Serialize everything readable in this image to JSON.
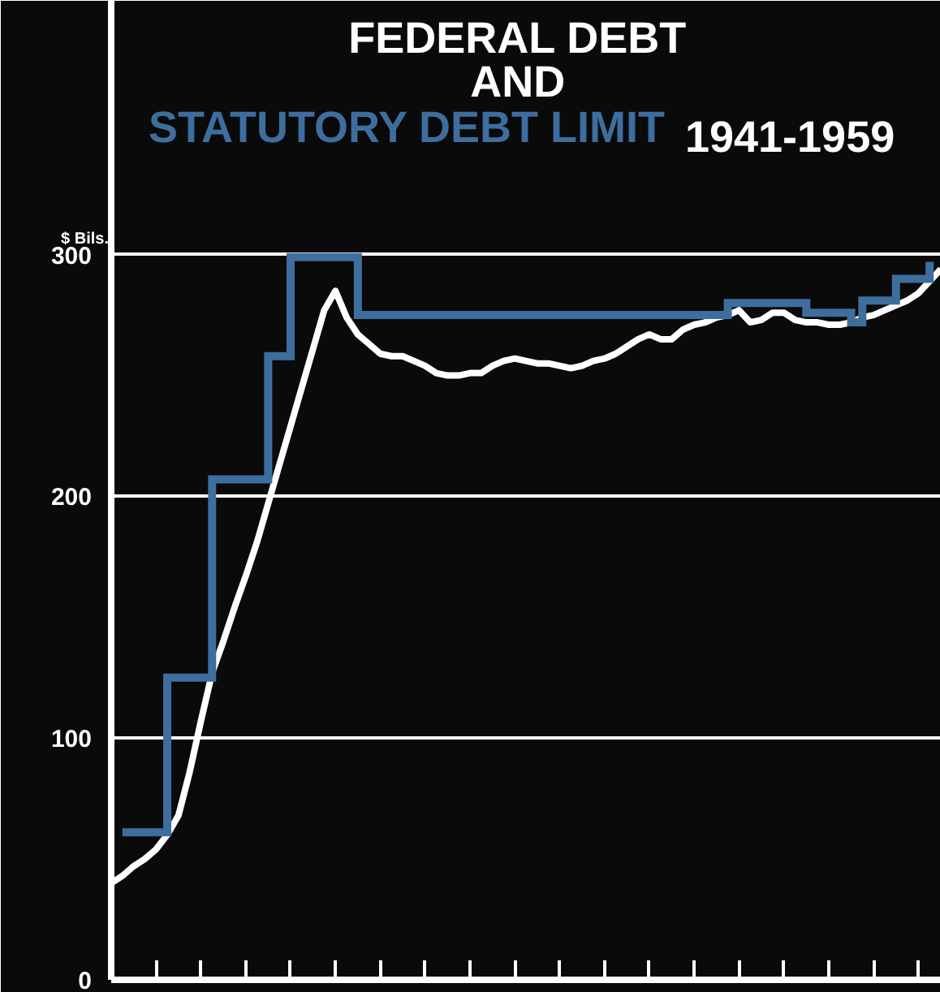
{
  "chart_data": {
    "type": "line",
    "title": "FEDERAL DEBT\nAND",
    "subtitle": "1941-1959",
    "ylabel": "$ Bils.",
    "categories": [
      null,
      null,
      null,
      null,
      null,
      null,
      null,
      null,
      null,
      null,
      null,
      null,
      null,
      null,
      null,
      null,
      null,
      null,
      null,
      null,
      null,
      null,
      null,
      null,
      null,
      null,
      null,
      null,
      null,
      null,
      null,
      null,
      null,
      null,
      null,
      null,
      null,
      null,
      null,
      null,
      null,
      null,
      null,
      null,
      null,
      null,
      null,
      null,
      null,
      null,
      null,
      null,
      null,
      null,
      null,
      null,
      null,
      null,
      null,
      null,
      null,
      null,
      null,
      null,
      null,
      null,
      null,
      null,
      null,
      null,
      null,
      null,
      null,
      null,
      null
    ],
    "ylim": [
      0,
      405
    ],
    "yticks": [
      0,
      100,
      200,
      300
    ],
    "grid": "y",
    "tick_labels": "y",
    "series": [
      {
        "color": "#ffffff",
        "values": [
          40,
          43,
          47,
          50,
          54,
          60,
          68,
          86,
          107,
          127,
          140,
          154,
          167,
          181,
          197,
          213,
          229,
          245,
          261,
          277,
          285,
          274,
          267,
          263,
          259,
          258,
          258,
          256,
          254,
          251,
          250,
          250,
          251,
          251,
          254,
          256,
          257,
          256,
          255,
          255,
          254,
          253,
          254,
          256,
          257,
          259,
          262,
          265,
          267,
          265,
          265,
          269,
          271,
          272,
          274,
          275,
          277,
          272,
          273,
          276,
          276,
          273,
          272,
          272,
          271,
          271,
          272,
          274,
          275,
          277,
          279,
          281,
          284,
          289,
          294
        ]
      },
      {
        "type": "step",
        "name": "STATUTORY DEBT LIMIT",
        "color": "#3d6e9e",
        "values": [
          null,
          61,
          61,
          61,
          61,
          125,
          125,
          125,
          125,
          207,
          207,
          207,
          207,
          207,
          258,
          258,
          299,
          299,
          299,
          299,
          299,
          299,
          275,
          275,
          275,
          275,
          275,
          275,
          275,
          275,
          275,
          275,
          275,
          275,
          275,
          275,
          275,
          275,
          275,
          275,
          275,
          275,
          275,
          275,
          275,
          275,
          275,
          275,
          275,
          275,
          275,
          275,
          275,
          275,
          275,
          280,
          280,
          280,
          280,
          280,
          280,
          280,
          276,
          276,
          276,
          276,
          272,
          281,
          281,
          281,
          290,
          290,
          290,
          297,
          null
        ]
      }
    ]
  }
}
